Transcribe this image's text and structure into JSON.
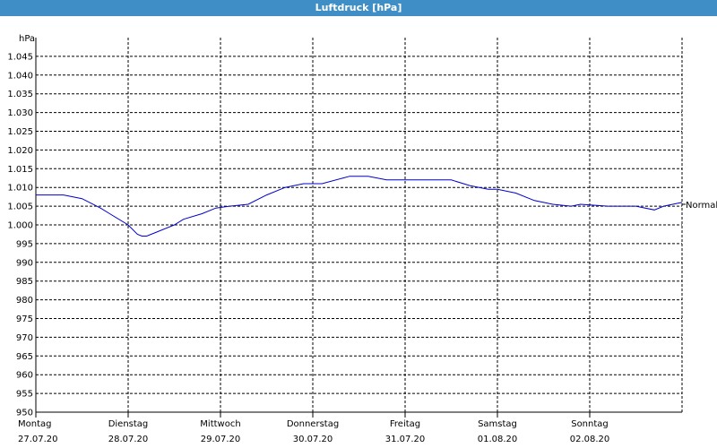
{
  "window": {
    "title": "Luftdruck [hPa]"
  },
  "chart_data": {
    "type": "line",
    "title": "Luftdruck [hPa]",
    "ylabel": "hPa",
    "ylim": [
      950,
      1050
    ],
    "yticks": [
      950,
      955,
      960,
      965,
      970,
      975,
      980,
      985,
      990,
      995,
      1000,
      1005,
      1010,
      1015,
      1020,
      1025,
      1030,
      1035,
      1040,
      1045
    ],
    "ytick_labels": [
      "950",
      "955",
      "960",
      "965",
      "970",
      "975",
      "980",
      "985",
      "990",
      "995",
      "1.000",
      "1.005",
      "1.010",
      "1.015",
      "1.020",
      "1.025",
      "1.030",
      "1.035",
      "1.040",
      "1.045"
    ],
    "xlim": [
      0,
      7
    ],
    "day_labels": [
      {
        "weekday": "Montag",
        "date": "27.07.20"
      },
      {
        "weekday": "Dienstag",
        "date": "28.07.20"
      },
      {
        "weekday": "Mittwoch",
        "date": "29.07.20"
      },
      {
        "weekday": "Donnerstag",
        "date": "30.07.20"
      },
      {
        "weekday": "Freitag",
        "date": "31.07.20"
      },
      {
        "weekday": "Samstag",
        "date": "01.08.20"
      },
      {
        "weekday": "Sonntag",
        "date": "02.08.20"
      }
    ],
    "grid": true,
    "reference_line": {
      "label": "Normal",
      "value": 1005.5
    },
    "series": [
      {
        "color": "#0000cc",
        "x": [
          0,
          0.15,
          0.3,
          0.5,
          0.7,
          0.8,
          1.0,
          1.1,
          1.15,
          1.2,
          1.3,
          1.5,
          1.6,
          1.8,
          1.95,
          2.1,
          2.3,
          2.5,
          2.7,
          2.9,
          3.1,
          3.4,
          3.6,
          3.8,
          4.0,
          4.2,
          4.5,
          4.7,
          4.9,
          5.0,
          5.2,
          5.4,
          5.6,
          5.8,
          5.9,
          6.2,
          6.5,
          6.7,
          6.8,
          7.0
        ],
        "y": [
          1008.0,
          1008.0,
          1008.0,
          1007.0,
          1004.5,
          1003.0,
          1000.0,
          997.5,
          997.0,
          997.0,
          998.0,
          1000.0,
          1001.5,
          1003.0,
          1004.5,
          1005.0,
          1005.5,
          1008.0,
          1010.0,
          1011.0,
          1011.0,
          1013.0,
          1013.0,
          1012.0,
          1012.0,
          1012.0,
          1012.0,
          1010.5,
          1009.5,
          1009.5,
          1008.5,
          1006.5,
          1005.5,
          1005.0,
          1005.5,
          1005.0,
          1005.0,
          1004.0,
          1005.0,
          1006.0
        ]
      }
    ]
  }
}
